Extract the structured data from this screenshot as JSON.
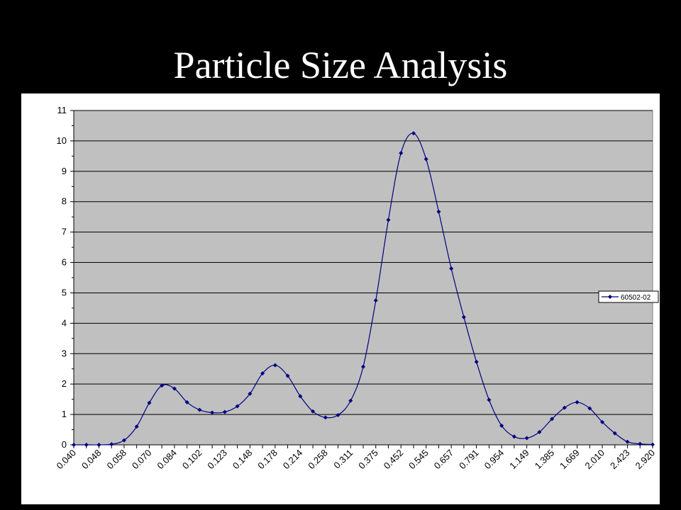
{
  "slide": {
    "title": "Particle Size Analysis"
  },
  "colors": {
    "background": "#000000",
    "panel": "#ffffff",
    "plot_area": "#c0c0c0",
    "series": "#000080",
    "grid": "#000000"
  },
  "chart_data": {
    "type": "line",
    "title": "",
    "xlabel": "",
    "ylabel": "",
    "ylim": [
      0,
      11
    ],
    "y_ticks": [
      0,
      1,
      2,
      3,
      4,
      5,
      6,
      7,
      8,
      9,
      10,
      11
    ],
    "grid": true,
    "legend_position": "right",
    "x_tick_labels": [
      "0.040",
      "0.048",
      "0.058",
      "0.070",
      "0.084",
      "0.102",
      "0.123",
      "0.148",
      "0.178",
      "0.214",
      "0.258",
      "0.311",
      "0.375",
      "0.452",
      "0.545",
      "0.657",
      "0.791",
      "0.954",
      "1.149",
      "1.385",
      "1.669",
      "2.010",
      "2.423",
      "2.920"
    ],
    "series": [
      {
        "name": "60502-02",
        "marker": "diamond",
        "values": [
          0,
          0,
          0,
          0.02,
          0.15,
          0.6,
          1.38,
          1.95,
          1.85,
          1.4,
          1.15,
          1.06,
          1.08,
          1.27,
          1.68,
          2.35,
          2.62,
          2.27,
          1.6,
          1.1,
          0.9,
          0.98,
          1.45,
          2.57,
          4.75,
          7.4,
          9.6,
          10.25,
          9.4,
          7.67,
          5.8,
          4.2,
          2.73,
          1.48,
          0.63,
          0.27,
          0.22,
          0.42,
          0.85,
          1.22,
          1.4,
          1.2,
          0.75,
          0.38,
          0.1,
          0.03,
          0.01
        ]
      }
    ]
  }
}
